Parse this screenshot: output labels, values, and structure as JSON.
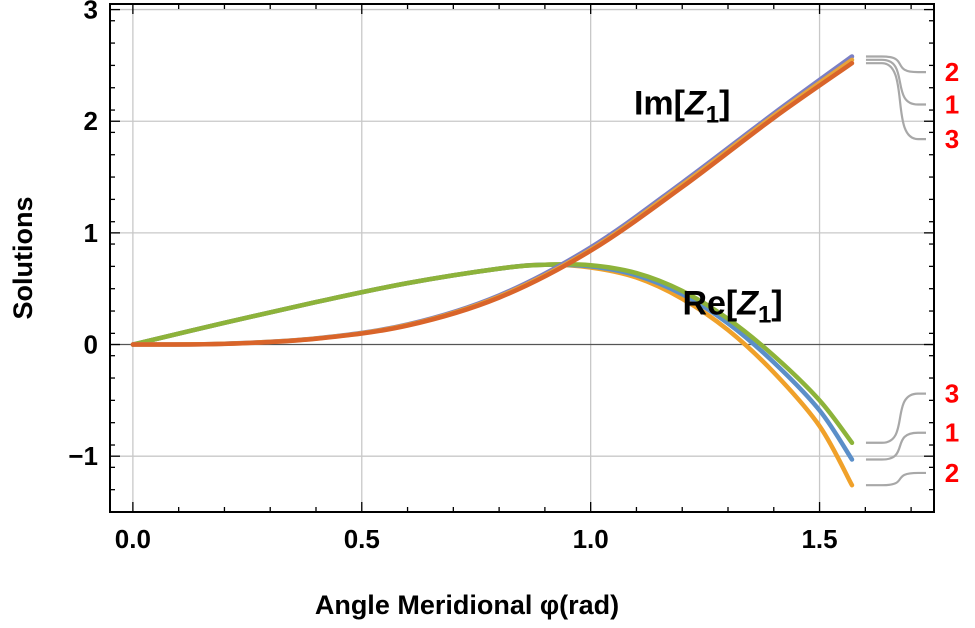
{
  "chart_data": {
    "type": "line",
    "xlabel": "Angle Meridional φ(rad)",
    "ylabel": "Solutions",
    "xlim": [
      -0.05,
      1.75
    ],
    "ylim": [
      -1.5,
      3.05
    ],
    "x_ticks": [
      {
        "value": 0.0,
        "label": "0.0"
      },
      {
        "value": 0.5,
        "label": "0.5"
      },
      {
        "value": 1.0,
        "label": "1.0"
      },
      {
        "value": 1.5,
        "label": "1.5"
      }
    ],
    "y_ticks": [
      {
        "value": -1,
        "label": "−1"
      },
      {
        "value": 0,
        "label": "0"
      },
      {
        "value": 1,
        "label": "1"
      },
      {
        "value": 2,
        "label": "2"
      },
      {
        "value": 3,
        "label": "3"
      }
    ],
    "grid": true,
    "annotations": [
      {
        "text_main": "Im[",
        "text_italic": "Z",
        "text_sub": "1",
        "text_end": "]",
        "x": 1.2,
        "y": 2.06
      },
      {
        "text_main": "Re[",
        "text_italic": "Z",
        "text_sub": "1",
        "text_end": "]",
        "x": 1.31,
        "y": 0.27
      }
    ],
    "series": [
      {
        "group": "Im",
        "label": "2",
        "color": "#7b7fc4",
        "x": [
          0,
          0.2,
          0.4,
          0.6,
          0.8,
          1.0,
          1.2,
          1.4,
          1.5708
        ],
        "y": [
          0,
          0.007,
          0.055,
          0.18,
          0.44,
          0.87,
          1.45,
          2.07,
          2.58
        ]
      },
      {
        "group": "Im",
        "label": "1",
        "color": "#e8a33a",
        "x": [
          0,
          0.2,
          0.4,
          0.6,
          0.8,
          1.0,
          1.2,
          1.4,
          1.5708
        ],
        "y": [
          0,
          0.007,
          0.054,
          0.175,
          0.43,
          0.85,
          1.43,
          2.05,
          2.55
        ]
      },
      {
        "group": "Im",
        "label": "3",
        "color": "#d9642a",
        "x": [
          0,
          0.2,
          0.4,
          0.6,
          0.8,
          1.0,
          1.2,
          1.4,
          1.5708
        ],
        "y": [
          0,
          0.006,
          0.052,
          0.17,
          0.42,
          0.84,
          1.41,
          2.03,
          2.52
        ]
      },
      {
        "group": "Re",
        "label": "3",
        "color": "#8db33a",
        "x": [
          0,
          0.2,
          0.4,
          0.6,
          0.8,
          0.9,
          1.0,
          1.1,
          1.2,
          1.3,
          1.4,
          1.5,
          1.5708
        ],
        "y": [
          0,
          0.195,
          0.38,
          0.55,
          0.68,
          0.715,
          0.71,
          0.64,
          0.48,
          0.23,
          -0.1,
          -0.5,
          -0.88
        ]
      },
      {
        "group": "Re",
        "label": "1",
        "color": "#5b8fc9",
        "x": [
          0,
          0.2,
          0.4,
          0.6,
          0.8,
          0.9,
          1.0,
          1.1,
          1.2,
          1.3,
          1.4,
          1.5,
          1.5708
        ],
        "y": [
          0,
          0.195,
          0.38,
          0.55,
          0.68,
          0.715,
          0.7,
          0.62,
          0.45,
          0.19,
          -0.16,
          -0.59,
          -1.03
        ]
      },
      {
        "group": "Re",
        "label": "2",
        "color": "#f0a12a",
        "x": [
          0,
          0.2,
          0.4,
          0.6,
          0.8,
          0.9,
          1.0,
          1.1,
          1.2,
          1.3,
          1.4,
          1.5,
          1.5708
        ],
        "y": [
          0,
          0.195,
          0.38,
          0.55,
          0.68,
          0.715,
          0.69,
          0.6,
          0.41,
          0.13,
          -0.25,
          -0.73,
          -1.26
        ]
      }
    ],
    "legend_groups": [
      {
        "group": "Im",
        "labels": [
          "2",
          "1",
          "3"
        ],
        "label_y": [
          2.44,
          2.15,
          1.84
        ]
      },
      {
        "group": "Re",
        "labels": [
          "3",
          "1",
          "2"
        ],
        "label_y": [
          -0.44,
          -0.79,
          -1.15
        ]
      }
    ]
  }
}
